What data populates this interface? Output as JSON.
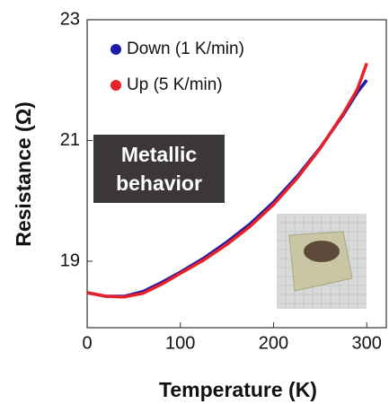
{
  "chart_data": {
    "type": "line",
    "xlabel": "Temperature (K)",
    "ylabel": "Resistance (Ω)",
    "annotation": "Metallic behavior",
    "x": [
      0,
      20,
      40,
      60,
      80,
      100,
      125,
      150,
      175,
      200,
      225,
      250,
      275,
      290,
      300
    ],
    "series": [
      {
        "name": "Down (1 K/min)",
        "color": "#1c1ca8",
        "values": [
          18.48,
          18.42,
          18.42,
          18.5,
          18.65,
          18.82,
          19.05,
          19.32,
          19.62,
          19.98,
          20.4,
          20.88,
          21.43,
          21.8,
          22.0
        ]
      },
      {
        "name": "Up (5 K/min)",
        "color": "#e8202a",
        "values": [
          18.48,
          18.42,
          18.41,
          18.47,
          18.62,
          18.8,
          19.02,
          19.28,
          19.58,
          19.94,
          20.37,
          20.87,
          21.45,
          21.85,
          22.28
        ]
      }
    ],
    "xlim": [
      0,
      321
    ],
    "ylim": [
      17.9,
      23
    ],
    "xticks": [
      0,
      100,
      200,
      300
    ],
    "yticks": [
      19,
      21,
      23
    ],
    "legend": "upper left"
  }
}
